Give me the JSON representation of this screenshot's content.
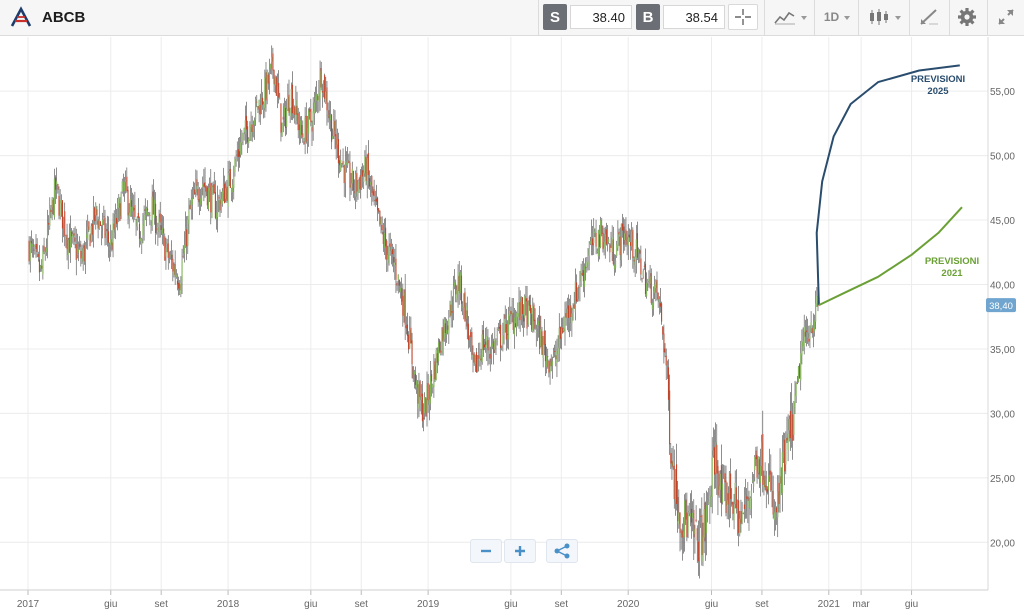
{
  "header": {
    "title": "ABCB",
    "sell_label": "S",
    "sell_price": "38.40",
    "buy_label": "B",
    "buy_price": "38.54",
    "timeframe": "1D",
    "icons": [
      "crosshair-icon",
      "line-chart-icon",
      "candlestick-icon",
      "draw-tool-icon",
      "gear-icon",
      "expand-icon"
    ]
  },
  "chart_data": {
    "type": "candlestick",
    "title": "",
    "y_ticks": [
      "55,00",
      "50,00",
      "45,00",
      "40,00",
      "35,00",
      "30,00",
      "25,00",
      "20,00"
    ],
    "ylim": [
      16.3,
      59.2
    ],
    "x_ticks": [
      "2017",
      "giu",
      "set",
      "2018",
      "giu",
      "set",
      "2019",
      "giu",
      "set",
      "2020",
      "giu",
      "set",
      "2021",
      "mar",
      "giu"
    ],
    "last_price_label": "38,40",
    "price_path": [
      [
        "2017-01-03",
        43.0
      ],
      [
        "2017-01-25",
        40.8
      ],
      [
        "2017-02-20",
        47.5
      ],
      [
        "2017-03-15",
        43.5
      ],
      [
        "2017-04-10",
        42.0
      ],
      [
        "2017-05-05",
        45.5
      ],
      [
        "2017-06-01",
        43.0
      ],
      [
        "2017-06-25",
        47.5
      ],
      [
        "2017-07-20",
        44.0
      ],
      [
        "2017-08-15",
        46.0
      ],
      [
        "2017-09-15",
        42.0
      ],
      [
        "2017-10-05",
        40.5
      ],
      [
        "2017-10-25",
        46.0
      ],
      [
        "2017-11-15",
        48.0
      ],
      [
        "2017-12-10",
        46.0
      ],
      [
        "2018-01-05",
        48.0
      ],
      [
        "2018-01-25",
        51.0
      ],
      [
        "2018-02-15",
        53.0
      ],
      [
        "2018-03-10",
        55.0
      ],
      [
        "2018-03-25",
        57.0
      ],
      [
        "2018-04-10",
        52.0
      ],
      [
        "2018-04-25",
        55.0
      ],
      [
        "2018-05-15",
        51.5
      ],
      [
        "2018-06-05",
        53.0
      ],
      [
        "2018-06-20",
        56.5
      ],
      [
        "2018-07-10",
        52.0
      ],
      [
        "2018-07-31",
        49.0
      ],
      [
        "2018-08-20",
        47.5
      ],
      [
        "2018-09-10",
        49.0
      ],
      [
        "2018-09-25",
        46.0
      ],
      [
        "2018-10-15",
        43.0
      ],
      [
        "2018-11-01",
        41.5
      ],
      [
        "2018-11-20",
        38.0
      ],
      [
        "2018-12-10",
        32.0
      ],
      [
        "2018-12-24",
        30.0
      ],
      [
        "2019-01-10",
        33.0
      ],
      [
        "2019-01-25",
        36.0
      ],
      [
        "2019-02-10",
        38.0
      ],
      [
        "2019-02-25",
        40.5
      ],
      [
        "2019-03-10",
        38.0
      ],
      [
        "2019-03-25",
        33.0
      ],
      [
        "2019-04-10",
        35.5
      ],
      [
        "2019-04-25",
        35.0
      ],
      [
        "2019-05-15",
        36.0
      ],
      [
        "2019-06-05",
        37.5
      ],
      [
        "2019-06-25",
        38.0
      ],
      [
        "2019-07-15",
        37.0
      ],
      [
        "2019-08-05",
        34.5
      ],
      [
        "2019-08-20",
        34.0
      ],
      [
        "2019-09-05",
        37.0
      ],
      [
        "2019-09-25",
        39.0
      ],
      [
        "2019-10-10",
        41.0
      ],
      [
        "2019-10-25",
        43.0
      ],
      [
        "2019-11-15",
        44.0
      ],
      [
        "2019-12-05",
        42.5
      ],
      [
        "2019-12-25",
        44.0
      ],
      [
        "2020-01-15",
        42.5
      ],
      [
        "2020-02-05",
        40.0
      ],
      [
        "2020-02-25",
        39.0
      ],
      [
        "2020-03-05",
        36.0
      ],
      [
        "2020-03-12",
        33.0
      ],
      [
        "2020-03-18",
        28.0
      ],
      [
        "2020-03-25",
        25.0
      ],
      [
        "2020-04-05",
        22.0
      ],
      [
        "2020-04-20",
        21.5
      ],
      [
        "2020-05-05",
        20.0
      ],
      [
        "2020-05-20",
        21.0
      ],
      [
        "2020-06-08",
        27.0
      ],
      [
        "2020-06-20",
        23.0
      ],
      [
        "2020-07-05",
        24.0
      ],
      [
        "2020-07-25",
        21.5
      ],
      [
        "2020-08-10",
        24.0
      ],
      [
        "2020-08-25",
        27.0
      ],
      [
        "2020-09-10",
        25.5
      ],
      [
        "2020-09-25",
        21.5
      ],
      [
        "2020-10-10",
        26.0
      ],
      [
        "2020-10-25",
        29.0
      ],
      [
        "2020-11-05",
        32.0
      ],
      [
        "2020-11-12",
        35.0
      ],
      [
        "2020-11-25",
        36.5
      ],
      [
        "2020-12-05",
        37.5
      ],
      [
        "2020-12-14",
        38.4
      ]
    ],
    "forecasts": [
      {
        "label_line1": "PREVISIONI",
        "label_line2": "2025",
        "color": "#2a4d6e",
        "points": [
          [
            "2020-12-14",
            38.4
          ],
          [
            "2020-12-10",
            44.0
          ],
          [
            "2020-12-20",
            48.0
          ],
          [
            "2021-01-10",
            51.5
          ],
          [
            "2021-02-10",
            54.0
          ],
          [
            "2021-04-01",
            55.7
          ],
          [
            "2021-06-15",
            56.6
          ],
          [
            "2021-08-28",
            57.0
          ]
        ]
      },
      {
        "label_line1": "PREVISIONI",
        "label_line2": "2021",
        "color": "#6aa035",
        "points": [
          [
            "2020-12-14",
            38.4
          ],
          [
            "2021-02-01",
            39.4
          ],
          [
            "2021-04-01",
            40.6
          ],
          [
            "2021-06-01",
            42.3
          ],
          [
            "2021-07-20",
            44.0
          ],
          [
            "2021-09-01",
            46.0
          ]
        ]
      }
    ]
  }
}
